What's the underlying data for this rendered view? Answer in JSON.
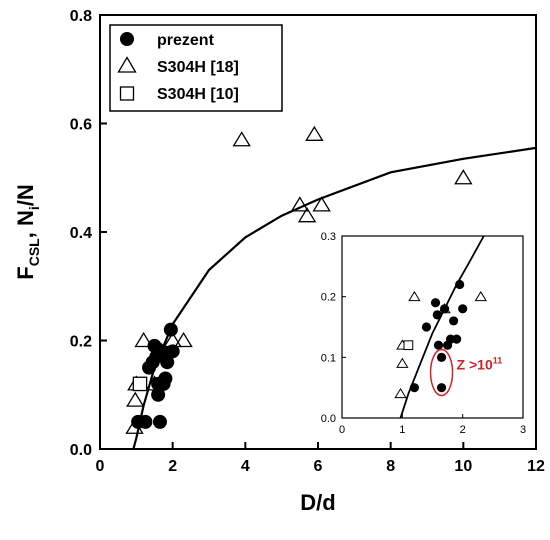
{
  "chart_data": [
    {
      "type": "scatter",
      "xlabel": "D/d",
      "ylabel": {
        "main": "F",
        "sub": "CSL",
        "sep": ", N",
        "sub2": "i",
        "tail": "/N"
      },
      "xlim": [
        0,
        12
      ],
      "ylim": [
        0,
        0.8
      ],
      "x_ticks": [
        0,
        2,
        4,
        6,
        8,
        10,
        12
      ],
      "y_ticks": [
        0.0,
        0.2,
        0.4,
        0.6,
        0.8
      ],
      "y_tick_labels": [
        "0.0",
        "0.2",
        "0.4",
        "0.6",
        "0.8"
      ],
      "grid": false,
      "legend": "top-left",
      "series": [
        {
          "name": "prezent",
          "marker": "filled-circle",
          "points": [
            [
              1.05,
              0.05
            ],
            [
              1.25,
              0.05
            ],
            [
              1.35,
              0.15
            ],
            [
              1.45,
              0.16
            ],
            [
              1.5,
              0.19
            ],
            [
              1.55,
              0.17
            ],
            [
              1.6,
              0.12
            ],
            [
              1.6,
              0.1
            ],
            [
              1.65,
              0.05
            ],
            [
              1.7,
              0.18
            ],
            [
              1.75,
              0.12
            ],
            [
              1.8,
              0.13
            ],
            [
              1.85,
              0.16
            ],
            [
              1.95,
              0.22
            ],
            [
              2.0,
              0.18
            ]
          ]
        },
        {
          "name": "S304H [18]",
          "marker": "open-triangle",
          "points": [
            [
              0.95,
              0.04
            ],
            [
              0.97,
              0.09
            ],
            [
              1.0,
              0.12
            ],
            [
              1.2,
              0.2
            ],
            [
              1.5,
              0.12
            ],
            [
              1.7,
              0.18
            ],
            [
              2.0,
              0.2
            ],
            [
              2.3,
              0.2
            ],
            [
              3.9,
              0.57
            ],
            [
              5.5,
              0.45
            ],
            [
              5.7,
              0.43
            ],
            [
              5.9,
              0.58
            ],
            [
              6.1,
              0.45
            ],
            [
              10.0,
              0.5
            ]
          ]
        },
        {
          "name": "S304H [10]",
          "marker": "open-square",
          "points": [
            [
              1.1,
              0.12
            ]
          ]
        }
      ],
      "fit_curve": {
        "description": "solid line",
        "points": [
          [
            0.92,
            0.0
          ],
          [
            1.0,
            0.02
          ],
          [
            1.2,
            0.08
          ],
          [
            1.5,
            0.15
          ],
          [
            2.0,
            0.23
          ],
          [
            3.0,
            0.33
          ],
          [
            4.0,
            0.39
          ],
          [
            5.0,
            0.43
          ],
          [
            6.0,
            0.46
          ],
          [
            8.0,
            0.51
          ],
          [
            10.0,
            0.535
          ],
          [
            12.0,
            0.555
          ]
        ]
      }
    },
    {
      "type": "scatter",
      "role": "inset",
      "xlim": [
        0,
        3
      ],
      "ylim": [
        0,
        0.3
      ],
      "x_ticks": [
        0,
        1,
        2,
        3
      ],
      "y_ticks": [
        0.0,
        0.1,
        0.2,
        0.3
      ],
      "y_tick_labels": [
        "0.0",
        "0.1",
        "0.2",
        "0.3"
      ],
      "series": [
        {
          "name": "prezent",
          "marker": "filled-circle",
          "points": [
            [
              1.2,
              0.05
            ],
            [
              1.4,
              0.15
            ],
            [
              1.55,
              0.19
            ],
            [
              1.58,
              0.17
            ],
            [
              1.6,
              0.12
            ],
            [
              1.65,
              0.1
            ],
            [
              1.65,
              0.05
            ],
            [
              1.7,
              0.18
            ],
            [
              1.75,
              0.12
            ],
            [
              1.8,
              0.13
            ],
            [
              1.85,
              0.16
            ],
            [
              1.9,
              0.13
            ],
            [
              1.95,
              0.22
            ],
            [
              2.0,
              0.18
            ]
          ]
        },
        {
          "name": "S304H [18]",
          "marker": "open-triangle",
          "points": [
            [
              0.97,
              0.04
            ],
            [
              1.0,
              0.09
            ],
            [
              1.0,
              0.12
            ],
            [
              1.2,
              0.2
            ],
            [
              1.7,
              0.18
            ],
            [
              2.3,
              0.2
            ]
          ]
        },
        {
          "name": "S304H [10]",
          "marker": "open-square",
          "points": [
            [
              1.1,
              0.12
            ]
          ]
        }
      ],
      "fit_curve": {
        "points": [
          [
            0.97,
            0.0
          ],
          [
            1.1,
            0.04
          ],
          [
            1.3,
            0.09
          ],
          [
            1.5,
            0.14
          ],
          [
            1.7,
            0.18
          ],
          [
            1.9,
            0.22
          ],
          [
            2.1,
            0.255
          ],
          [
            2.35,
            0.3
          ]
        ]
      },
      "annotation": {
        "text": "Z >10",
        "superscript": "11",
        "color": "#d0232a",
        "circled_point": [
          1.65,
          0.075
        ]
      }
    }
  ]
}
